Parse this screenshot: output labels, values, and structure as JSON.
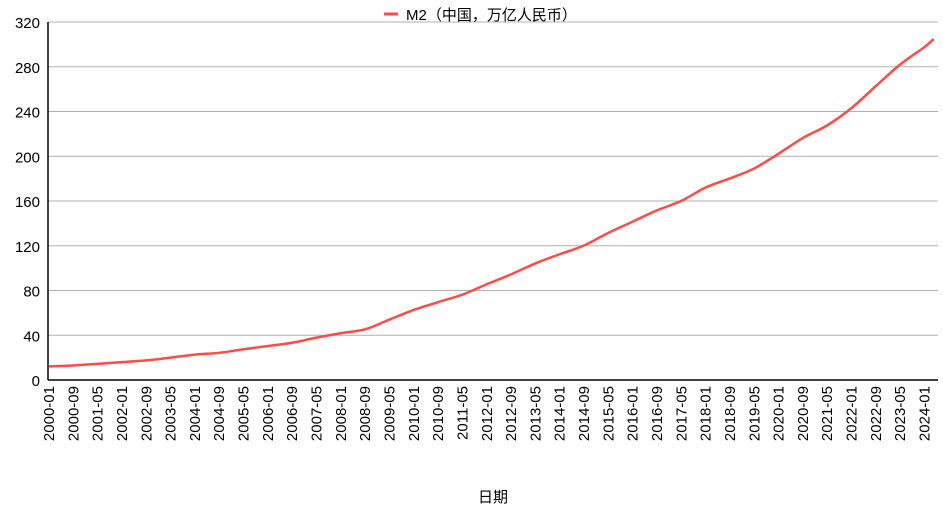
{
  "chart_data": {
    "type": "line",
    "title": "",
    "xlabel": "日期",
    "ylabel": "",
    "ylim": [
      0,
      320
    ],
    "yticks": [
      0,
      40,
      80,
      120,
      160,
      200,
      240,
      280,
      320
    ],
    "grid": true,
    "legend_placement": "top-center",
    "xtick_labels": [
      "2000-01",
      "2000-09",
      "2001-05",
      "2002-01",
      "2002-09",
      "2003-05",
      "2004-01",
      "2004-09",
      "2005-05",
      "2006-01",
      "2006-09",
      "2007-05",
      "2008-01",
      "2008-09",
      "2009-05",
      "2010-01",
      "2010-09",
      "2011-05",
      "2012-01",
      "2012-09",
      "2013-05",
      "2014-01",
      "2014-09",
      "2015-05",
      "2016-01",
      "2016-09",
      "2017-05",
      "2018-01",
      "2018-09",
      "2019-05",
      "2020-01",
      "2020-09",
      "2021-05",
      "2022-01",
      "2022-09",
      "2023-05",
      "2024-01"
    ],
    "series": [
      {
        "name": "M2（中国，万亿人民币）",
        "color": "#ff4b45",
        "x": [
          "2000-01",
          "2000-09",
          "2001-05",
          "2002-01",
          "2002-09",
          "2003-05",
          "2004-01",
          "2004-09",
          "2005-05",
          "2006-01",
          "2006-09",
          "2007-05",
          "2008-01",
          "2008-09",
          "2009-05",
          "2010-01",
          "2010-09",
          "2011-05",
          "2012-01",
          "2012-09",
          "2013-05",
          "2014-01",
          "2014-09",
          "2015-05",
          "2016-01",
          "2016-09",
          "2017-05",
          "2018-01",
          "2018-09",
          "2019-05",
          "2020-01",
          "2020-09",
          "2021-05",
          "2022-01",
          "2022-09",
          "2023-05",
          "2024-01",
          "2024-04"
        ],
        "values": [
          12.2,
          13.0,
          14.4,
          16.0,
          17.5,
          20.0,
          22.7,
          24.3,
          27.5,
          30.4,
          33.3,
          37.9,
          41.8,
          45.3,
          54.0,
          62.6,
          69.6,
          76.3,
          85.6,
          94.4,
          104.2,
          112.4,
          120.2,
          131.5,
          141.6,
          151.6,
          160.1,
          172.1,
          180.2,
          189.1,
          202.3,
          216.4,
          227.6,
          243.1,
          262.7,
          282.0,
          297.6,
          304.8
        ]
      }
    ]
  }
}
